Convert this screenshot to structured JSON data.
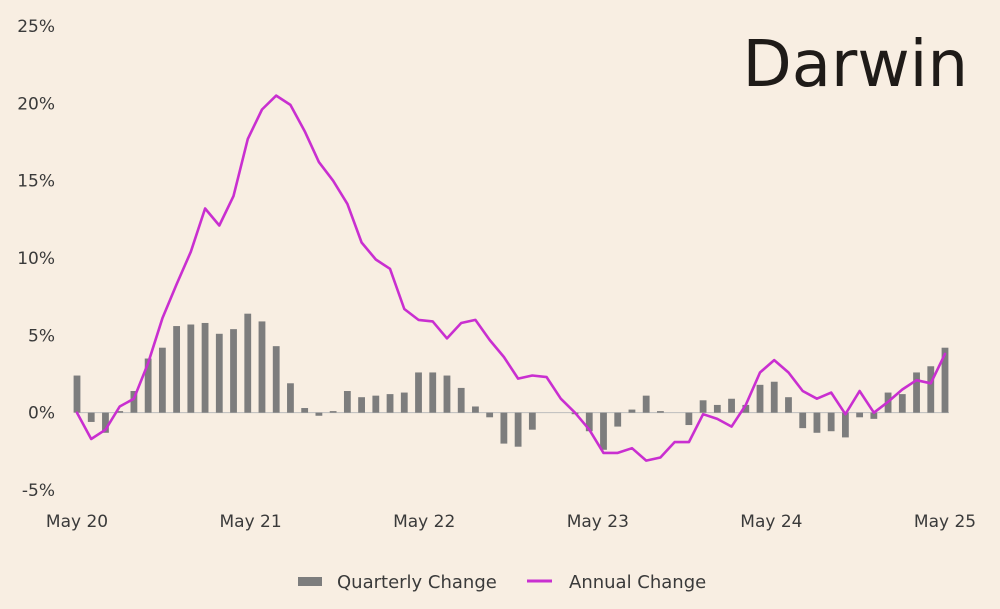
{
  "chart_data": {
    "type": "bar",
    "title": "Darwin",
    "xlabel": "",
    "ylabel": "",
    "ylim": [
      -5,
      25
    ],
    "y_ticks": [
      -5,
      0,
      5,
      10,
      15,
      20,
      25
    ],
    "y_tick_labels": [
      "-5%",
      "0%",
      "5%",
      "10%",
      "15%",
      "20%",
      "25%"
    ],
    "x_tick_labels": [
      "May 20",
      "May 21",
      "May 22",
      "May 23",
      "May 24",
      "May 25"
    ],
    "x_tick_index": [
      0,
      12,
      24,
      36,
      48,
      60
    ],
    "x_range": [
      0,
      60
    ],
    "grid": false,
    "legend": "bottom-center",
    "colors": {
      "quarterly": "#7d7d7d",
      "annual": "#c92fd0",
      "zero_line": "#bdbdbd"
    },
    "series": [
      {
        "name": "Quarterly Change",
        "type": "bar",
        "values": [
          2.4,
          -0.6,
          -1.3,
          0.1,
          1.4,
          3.5,
          4.2,
          5.6,
          5.7,
          5.8,
          5.1,
          5.4,
          6.4,
          5.9,
          4.3,
          1.9,
          0.3,
          -0.2,
          0.1,
          1.4,
          1.0,
          1.1,
          1.2,
          1.3,
          2.6,
          2.6,
          2.4,
          1.6,
          0.4,
          -0.3,
          -2.0,
          -2.2,
          -1.1,
          0.0,
          0.0,
          -0.1,
          -1.2,
          -2.4,
          -0.9,
          0.2,
          1.1,
          0.1,
          0.0,
          -0.8,
          0.8,
          0.5,
          0.9,
          0.5,
          1.8,
          2.0,
          1.0,
          -1.0,
          -1.3,
          -1.2,
          -1.6,
          -0.3,
          -0.4,
          1.3,
          1.2,
          2.6,
          3.0,
          4.2
        ]
      },
      {
        "name": "Annual Change",
        "type": "line",
        "values": [
          0.0,
          -1.7,
          -1.1,
          0.4,
          0.9,
          3.2,
          6.1,
          8.3,
          10.4,
          13.2,
          12.1,
          14.0,
          17.7,
          19.6,
          20.5,
          19.9,
          18.2,
          16.2,
          15.0,
          13.5,
          11.0,
          9.9,
          9.3,
          6.7,
          6.0,
          5.9,
          4.8,
          5.8,
          6.0,
          4.7,
          3.6,
          2.2,
          2.4,
          2.3,
          0.9,
          0.0,
          -1.1,
          -2.6,
          -2.6,
          -2.3,
          -3.1,
          -2.9,
          -1.9,
          -1.9,
          -0.1,
          -0.4,
          -0.9,
          0.5,
          2.6,
          3.4,
          2.6,
          1.4,
          0.9,
          1.3,
          -0.1,
          1.4,
          0.0,
          0.7,
          1.5,
          2.1,
          1.9,
          3.8
        ]
      }
    ]
  }
}
